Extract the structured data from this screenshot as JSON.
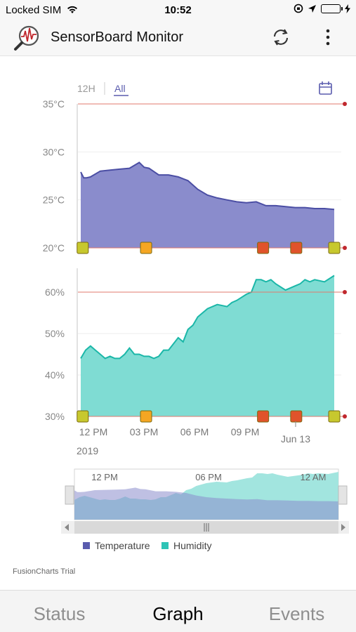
{
  "status_bar": {
    "carrier": "Locked SIM",
    "time": "10:52"
  },
  "app_bar": {
    "title": "SensorBoard Monitor",
    "logo_icon": "heartbeat-magnifier-icon",
    "refresh_icon": "refresh-icon",
    "menu_icon": "more-vertical-icon"
  },
  "range_selector": {
    "options": [
      "12H",
      "All"
    ],
    "selected": "All",
    "calendar_icon": "calendar-icon"
  },
  "chart_data": {
    "type": "area",
    "x_tick_labels": [
      "12 PM",
      "03 PM",
      "06 PM",
      "09 PM",
      "Jun 13"
    ],
    "x_year_label": "2019",
    "series": [
      {
        "name": "Temperature",
        "color": "#8a8ccc",
        "line_color": "#4b4ea4",
        "y_tick_labels": [
          "35°C",
          "30°C",
          "25°C",
          "20°C"
        ],
        "ylim": [
          20,
          35
        ],
        "threshold": 35,
        "threshold_color": "#e07a6e",
        "x": [
          0,
          0.3,
          0.6,
          1,
          2,
          3,
          4,
          5,
          6,
          6.5,
          7,
          8,
          9,
          10,
          11,
          12,
          13,
          14,
          15,
          16,
          17,
          18,
          19,
          20,
          21,
          22,
          23,
          24,
          25,
          26
        ],
        "values": [
          27.9,
          27.3,
          27.3,
          27.4,
          28.0,
          28.1,
          28.2,
          28.3,
          28.9,
          28.4,
          28.3,
          27.6,
          27.6,
          27.4,
          27.0,
          26.1,
          25.5,
          25.2,
          25.0,
          24.8,
          24.7,
          24.8,
          24.4,
          24.4,
          24.3,
          24.2,
          24.2,
          24.1,
          24.1,
          24.0
        ]
      },
      {
        "name": "Humidity",
        "color": "#7fdcd3",
        "line_color": "#1bb7a8",
        "y_tick_labels": [
          "60%",
          "50%",
          "40%",
          "30%"
        ],
        "ylim": [
          30,
          65
        ],
        "threshold": 60,
        "threshold_color": "#e07a6e",
        "x": [
          0,
          0.5,
          1,
          1.5,
          2,
          2.5,
          3,
          3.5,
          4,
          4.5,
          5,
          5.5,
          6,
          6.5,
          7,
          7.5,
          8,
          8.5,
          9,
          9.5,
          10,
          10.5,
          11,
          11.5,
          12,
          13,
          14,
          15,
          15.5,
          16,
          17,
          17.5,
          18,
          18.5,
          19,
          19.5,
          20,
          21,
          22,
          22.5,
          23,
          23.5,
          24,
          25,
          26
        ],
        "values": [
          44,
          46,
          47,
          46,
          45,
          44,
          44.5,
          44,
          44,
          45,
          46.5,
          45,
          45,
          44.5,
          44.5,
          44,
          44.5,
          46,
          46,
          47.5,
          49,
          48,
          51,
          52,
          54,
          56,
          57,
          56.5,
          57.5,
          58,
          59.5,
          60,
          63,
          63,
          62.5,
          63,
          62,
          60.5,
          61.5,
          62,
          63,
          62.5,
          63,
          62.5,
          64
        ]
      }
    ],
    "events": [
      {
        "x": 0.2,
        "color": "#c7c82e",
        "icon": "event-sync-icon"
      },
      {
        "x": 6.7,
        "color": "#f5a623",
        "icon": "event-warning-icon"
      },
      {
        "x": 18.7,
        "color": "#e0532b",
        "icon": "event-alert-icon"
      },
      {
        "x": 22.1,
        "color": "#e0532b",
        "icon": "event-alert-icon"
      },
      {
        "x": 26,
        "color": "#c7c82e",
        "icon": "event-sync-icon"
      }
    ],
    "navigator_tick_labels": [
      "12 PM",
      "06 PM",
      "12 AM"
    ],
    "legend": [
      {
        "label": "Temperature",
        "color": "#5a5cae"
      },
      {
        "label": "Humidity",
        "color": "#2ec4b6"
      }
    ],
    "legend_position": "bottom-left",
    "grid": true,
    "trial_label": "FusionCharts Trial"
  },
  "tabs": [
    {
      "label": "Status",
      "active": false
    },
    {
      "label": "Graph",
      "active": true
    },
    {
      "label": "Events",
      "active": false
    }
  ]
}
